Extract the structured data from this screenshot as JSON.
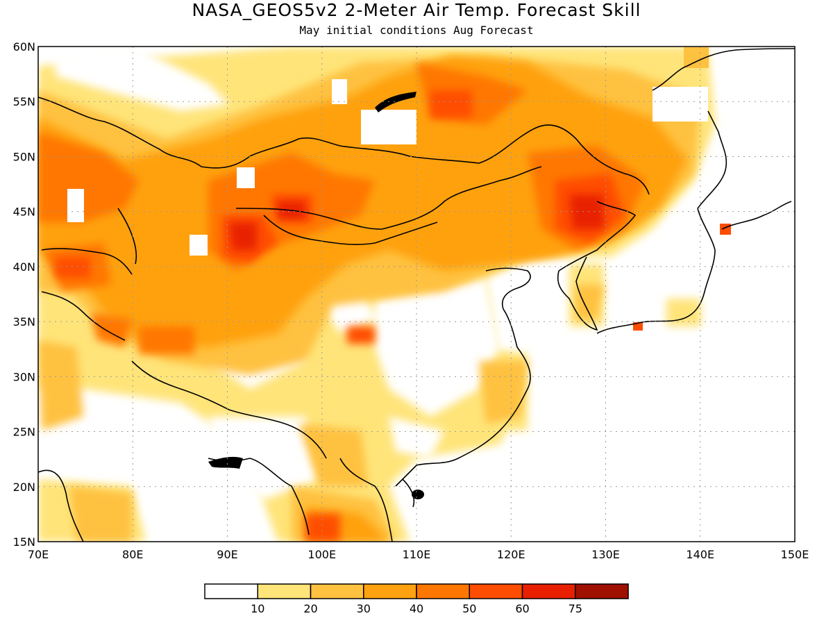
{
  "title": "NASA_GEOS5v2 2-Meter Air Temp. Forecast Skill",
  "subtitle": "May initial conditions  Aug Forecast",
  "map": {
    "lon_range": [
      70,
      150
    ],
    "lat_range": [
      15,
      60
    ],
    "lon_ticks": [
      "70E",
      "80E",
      "90E",
      "100E",
      "110E",
      "120E",
      "130E",
      "140E",
      "150E"
    ],
    "lat_ticks": [
      "15N",
      "20N",
      "25N",
      "30N",
      "35N",
      "40N",
      "45N",
      "50N",
      "55N",
      "60N"
    ],
    "gridlines": true,
    "coastlines": true
  },
  "colorbar": {
    "labels": [
      "10",
      "20",
      "30",
      "40",
      "50",
      "60",
      "75"
    ],
    "colors": [
      "#ffffff",
      "#ffe479",
      "#ffc140",
      "#ffa110",
      "#ff7700",
      "#ff4d00",
      "#e82000",
      "#a01000"
    ]
  }
}
